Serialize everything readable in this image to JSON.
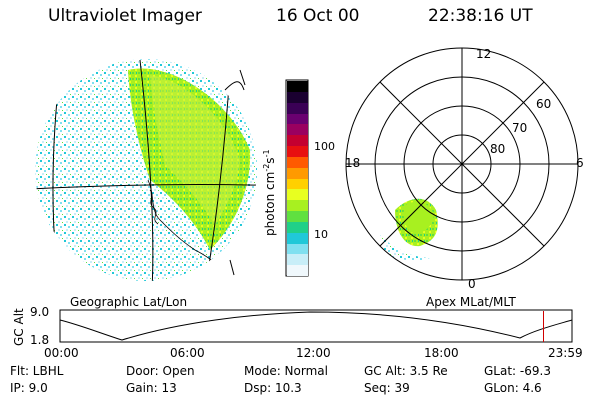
{
  "header": {
    "title": "Ultraviolet Imager",
    "date": "16 Oct 00",
    "time": "22:38:16 UT"
  },
  "colorbar": {
    "label": "photon cm",
    "label_exp1": "-2",
    "label_mid": "s",
    "label_exp2": "-1",
    "ticks": [
      "100",
      "10"
    ],
    "colors": [
      "#000000",
      "#1a0030",
      "#3a0055",
      "#6a0070",
      "#9a0060",
      "#c40030",
      "#e81010",
      "#ff5a00",
      "#ff9a00",
      "#ffd000",
      "#e8ff20",
      "#a8f020",
      "#60e040",
      "#20d088",
      "#20c8d8",
      "#80e0f0",
      "#c8eef8",
      "#f0f8fc"
    ]
  },
  "geo_panel": {
    "label": "Geographic Lat/Lon"
  },
  "polar_panel": {
    "label": "Apex MLat/MLT",
    "mlt_labels": {
      "top": "12",
      "left": "18",
      "right": "6",
      "bottom": "0"
    },
    "lat_labels": [
      "60",
      "70",
      "80"
    ]
  },
  "altitude_plot": {
    "ylabel": "GC Alt",
    "yticks": [
      "9.0",
      "1.8"
    ],
    "xticks": [
      "00:00",
      "06:00",
      "12:00",
      "18:00",
      "23:59"
    ],
    "current_time_fraction": 0.943,
    "marker_color": "#d00000"
  },
  "footer": {
    "row1": [
      {
        "key": "Flt:",
        "value": "LBHL"
      },
      {
        "key": "Door:",
        "value": "Open"
      },
      {
        "key": "Mode:",
        "value": "Normal"
      },
      {
        "key": "GC Alt:",
        "value": "3.5 Re"
      },
      {
        "key": "GLat:",
        "value": "-69.3"
      }
    ],
    "row2": [
      {
        "key": "IP:",
        "value": "9.0"
      },
      {
        "key": "Gain:",
        "value": "13"
      },
      {
        "key": "Dsp:",
        "value": "10.3"
      },
      {
        "key": "Seq:",
        "value": "39"
      },
      {
        "key": "GLon:",
        "value": "4.6"
      }
    ]
  }
}
